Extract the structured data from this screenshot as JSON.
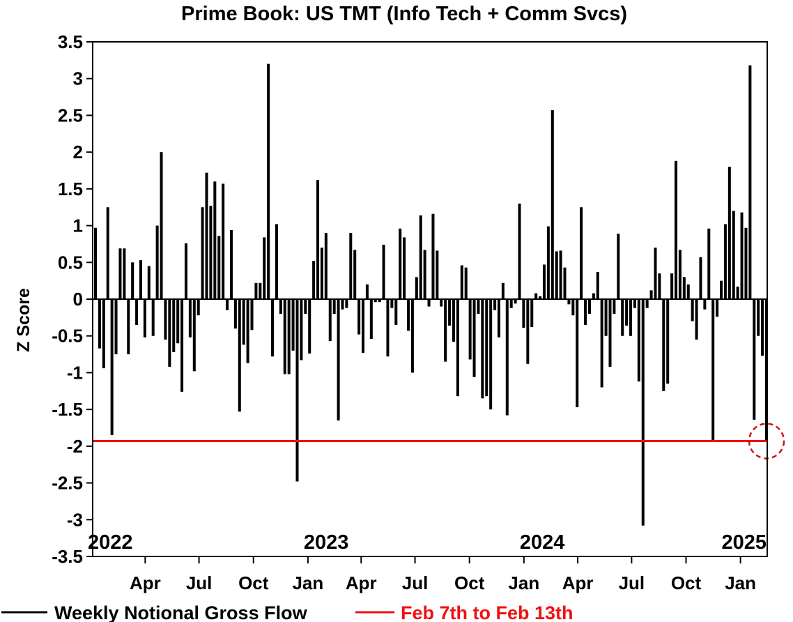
{
  "chart_data": {
    "type": "bar",
    "title": "Prime Book: US TMT (Info Tech + Comm Svcs)",
    "ylabel": "Z Score",
    "ylim": [
      -3.5,
      3.5
    ],
    "yticks": [
      "3.5",
      "3",
      "2.5",
      "2",
      "1.5",
      "1",
      "0.5",
      "0",
      "-0.5",
      "-1",
      "-1.5",
      "-2",
      "-2.5",
      "-3",
      "-3.5"
    ],
    "x_start": "2022-01-07",
    "x_end": "2025-02-14",
    "month_ticks": [
      {
        "label": "Apr",
        "date": "2022-04-01"
      },
      {
        "label": "Jul",
        "date": "2022-07-01"
      },
      {
        "label": "Oct",
        "date": "2022-10-01"
      },
      {
        "label": "Jan",
        "date": "2023-01-01"
      },
      {
        "label": "Apr",
        "date": "2023-04-01"
      },
      {
        "label": "Jul",
        "date": "2023-07-01"
      },
      {
        "label": "Oct",
        "date": "2023-10-01"
      },
      {
        "label": "Jan",
        "date": "2024-01-01"
      },
      {
        "label": "Apr",
        "date": "2024-04-01"
      },
      {
        "label": "Jul",
        "date": "2024-07-01"
      },
      {
        "label": "Oct",
        "date": "2024-10-01"
      },
      {
        "label": "Jan",
        "date": "2025-01-01"
      }
    ],
    "year_labels": [
      {
        "label": "2022",
        "date": "2022-02-01"
      },
      {
        "label": "2023",
        "date": "2023-02-01"
      },
      {
        "label": "2024",
        "date": "2024-02-01"
      },
      {
        "label": "2025",
        "date": "2025-02-14"
      }
    ],
    "series": [
      {
        "name": "Weekly Notional Gross Flow",
        "color": "#000000",
        "values": [
          0.97,
          -0.67,
          -0.94,
          1.25,
          -1.85,
          -0.75,
          0.69,
          0.69,
          -0.75,
          0.5,
          -0.35,
          0.53,
          -0.52,
          0.45,
          -0.5,
          1.0,
          2.0,
          -0.55,
          -0.92,
          -0.72,
          -0.6,
          -1.26,
          0.76,
          -0.52,
          -0.98,
          -0.22,
          1.25,
          1.72,
          1.27,
          1.6,
          0.86,
          1.57,
          -0.15,
          0.94,
          -0.4,
          -1.53,
          -0.62,
          -0.87,
          -0.42,
          0.22,
          0.22,
          0.84,
          3.2,
          -0.78,
          1.02,
          -0.2,
          -1.02,
          -1.02,
          -0.7,
          -2.48,
          -0.83,
          -0.2,
          -0.74,
          0.52,
          1.62,
          0.7,
          0.9,
          -0.57,
          -0.2,
          -1.65,
          -0.14,
          -0.12,
          0.9,
          0.67,
          -0.48,
          -0.73,
          0.2,
          -0.54,
          -0.04,
          -0.04,
          0.74,
          -0.78,
          -0.12,
          -0.35,
          0.96,
          0.84,
          -0.43,
          -1.0,
          0.3,
          1.14,
          0.67,
          -0.1,
          1.16,
          0.66,
          -0.1,
          -0.85,
          -0.36,
          -0.58,
          -1.32,
          0.46,
          0.43,
          -0.82,
          -1.06,
          -0.2,
          -1.35,
          -1.32,
          -1.5,
          -0.15,
          -0.52,
          0.22,
          -1.58,
          -0.12,
          -0.06,
          1.3,
          -0.39,
          -0.88,
          -0.38,
          0.08,
          0.04,
          0.47,
          0.99,
          2.57,
          0.65,
          0.66,
          0.43,
          -0.07,
          -0.22,
          -1.47,
          1.25,
          -0.35,
          -0.2,
          0.08,
          0.37,
          -1.2,
          -0.5,
          -0.92,
          -0.2,
          0.89,
          -0.5,
          -0.36,
          -0.5,
          -0.12,
          -1.12,
          -3.08,
          -0.12,
          0.12,
          0.7,
          0.35,
          -1.25,
          -1.15,
          0.35,
          1.88,
          0.67,
          0.3,
          0.2,
          -0.3,
          -0.55,
          0.57,
          -0.14,
          0.96,
          -1.93,
          -0.24,
          0.25,
          1.02,
          1.8,
          1.2,
          0.17,
          1.18,
          0.97,
          3.18,
          -1.64,
          -0.5,
          -0.77,
          -1.93
        ]
      },
      {
        "name": "Feb 7th to Feb 13th",
        "color": "#ee1111",
        "type": "hline",
        "value": -1.93
      }
    ],
    "annotations": [
      {
        "type": "dashed-circle",
        "color": "#cc1111",
        "date": "2025-02-14",
        "value": -1.93
      }
    ],
    "grid": false,
    "legend_position": "bottom-left"
  }
}
